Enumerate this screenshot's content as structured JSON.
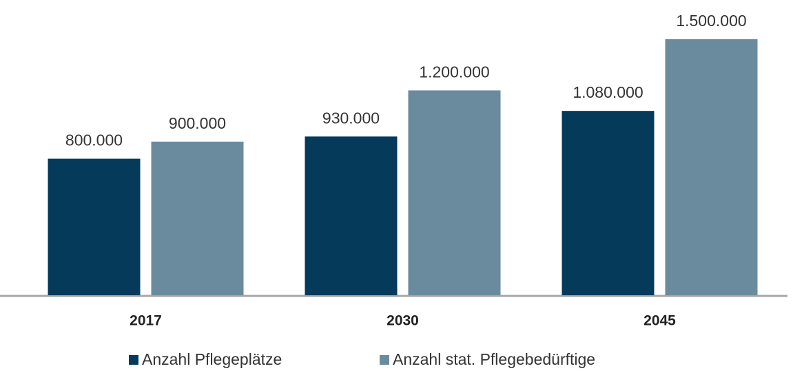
{
  "chart_data": {
    "type": "bar",
    "categories": [
      "2017",
      "2030",
      "2045"
    ],
    "series": [
      {
        "name": "Anzahl Pflegeplätze",
        "color": "#053a5a",
        "values": [
          800000,
          930000,
          1080000
        ],
        "value_labels": [
          "800.000",
          "930.000",
          "1.080.000"
        ]
      },
      {
        "name": "Anzahl stat. Pflegebedürftige",
        "color": "#6a8b9e",
        "values": [
          900000,
          1200000,
          1500000
        ],
        "value_labels": [
          "900.000",
          "1.200.000",
          "1.500.000"
        ]
      }
    ]
  }
}
